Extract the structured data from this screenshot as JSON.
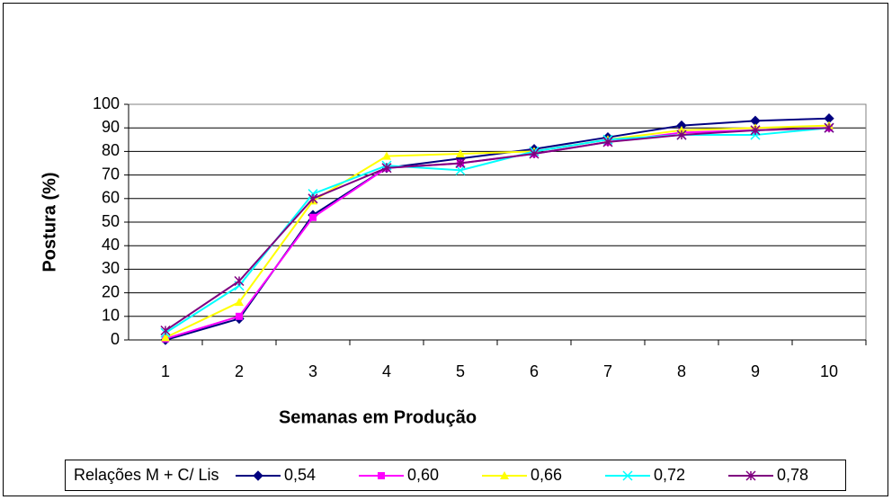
{
  "chart_data": {
    "type": "line",
    "x_label": "Semanas em Produção",
    "y_label": "Postura (%)",
    "legend_title": "Relações M + C/ Lis",
    "legend": "bottom",
    "grid": true,
    "categories": [
      "1",
      "2",
      "3",
      "4",
      "5",
      "6",
      "7",
      "8",
      "9",
      "10"
    ],
    "ylim": [
      0,
      100
    ],
    "yticks": [
      0,
      10,
      20,
      30,
      40,
      50,
      60,
      70,
      80,
      90,
      100
    ],
    "series": [
      {
        "name": "0,54",
        "color": "#000080",
        "marker": "diamond",
        "values": [
          0,
          9,
          53,
          73,
          77,
          81,
          86,
          91,
          93,
          94
        ]
      },
      {
        "name": "0,60",
        "color": "#ff00ff",
        "marker": "square",
        "values": [
          0.5,
          10,
          52,
          73,
          75,
          79,
          84,
          88,
          89,
          90
        ]
      },
      {
        "name": "0,66",
        "color": "#ffff00",
        "marker": "triangle",
        "values": [
          1,
          16,
          59,
          78,
          79,
          80,
          85,
          89,
          90,
          91
        ]
      },
      {
        "name": "0,72",
        "color": "#00ffff",
        "marker": "x",
        "values": [
          3,
          23,
          62,
          74,
          72,
          80,
          85,
          87,
          87,
          90
        ]
      },
      {
        "name": "0,78",
        "color": "#800080",
        "marker": "star",
        "values": [
          4,
          25,
          60,
          73,
          75,
          79,
          84,
          87,
          89,
          90
        ]
      }
    ]
  }
}
